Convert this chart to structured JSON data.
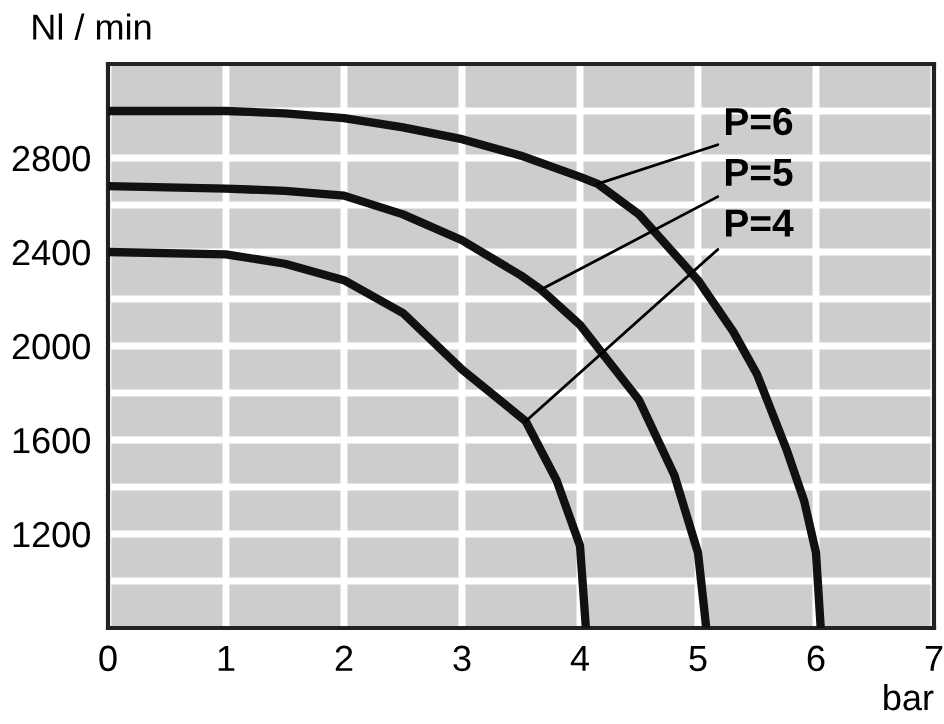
{
  "chart_data": {
    "type": "line",
    "xlabel": "bar",
    "ylabel": "Nl / min",
    "series": [
      {
        "color": "#111111",
        "x": [
          0,
          1,
          1.5,
          2,
          2.5,
          3,
          3.5,
          4,
          4.15,
          4.5,
          5,
          5.3,
          5.5,
          5.75,
          5.9,
          6,
          6.04
        ],
        "values": [
          3000,
          3000,
          2990,
          2970,
          2930,
          2880,
          2810,
          2720,
          2690,
          2560,
          2280,
          2060,
          1880,
          1560,
          1340,
          1120,
          800
        ]
      },
      {
        "color": "#111111",
        "x": [
          0,
          1,
          1.5,
          2,
          2.5,
          3,
          3.5,
          3.67,
          4,
          4.5,
          4.8,
          5,
          5.07
        ],
        "values": [
          2680,
          2670,
          2660,
          2640,
          2560,
          2450,
          2300,
          2240,
          2090,
          1770,
          1450,
          1120,
          800
        ]
      },
      {
        "color": "#111111",
        "x": [
          0,
          1,
          1.5,
          2,
          2.5,
          3,
          3.54,
          3.8,
          4,
          4.05
        ],
        "values": [
          2400,
          2390,
          2350,
          2280,
          2140,
          1900,
          1680,
          1430,
          1150,
          800
        ]
      }
    ],
    "annotations": [
      {
        "text": "P=6",
        "x": 4.15,
        "y": 2690
      },
      {
        "text": "P=5",
        "x": 3.67,
        "y": 2240
      },
      {
        "text": "P=4",
        "x": 3.54,
        "y": 1680
      }
    ],
    "xlim": [
      0,
      7
    ],
    "xticks": [
      0,
      1,
      2,
      3,
      4,
      5,
      6,
      7
    ],
    "ylim": [
      800,
      3200
    ],
    "yticks": [
      {
        "value": 1000,
        "label": null
      },
      1200,
      {
        "value": 1400,
        "label": null
      },
      1600,
      {
        "value": 1800,
        "label": null
      },
      2000,
      {
        "value": 2200,
        "label": null
      },
      2400,
      {
        "value": 2600,
        "label": null
      },
      2800,
      {
        "value": 3000,
        "label": null
      }
    ],
    "grid": true,
    "line_style": "solid",
    "marker": "none"
  }
}
